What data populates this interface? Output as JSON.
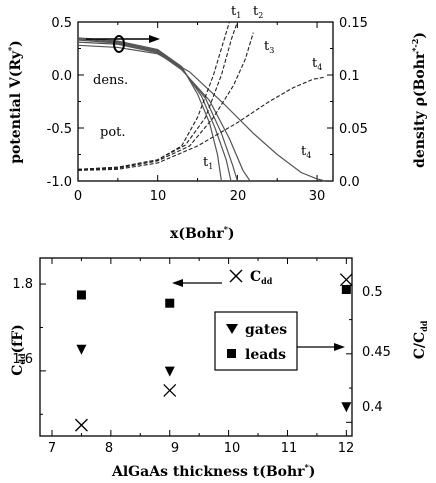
{
  "chart_data": [
    {
      "type": "line",
      "xlabel": "x(Bohr*)",
      "ylabel_left": "potential V(Ry*)",
      "ylabel_right": "density ρ(Bohr*-2)",
      "xlim": [
        0,
        32
      ],
      "ylim_left": [
        -1.0,
        0.5
      ],
      "ylim_right": [
        0,
        0.15
      ],
      "x_ticks": [
        "0",
        "10",
        "20",
        "30"
      ],
      "y_left_ticks": [
        "0.5",
        "0.0",
        "-0.5",
        "-1.0"
      ],
      "y_right_ticks": [
        "0.15",
        "0.1",
        "0.05",
        "0.0"
      ],
      "annotations": {
        "dens": "dens.",
        "pot": "pot.",
        "t1_top": "t1",
        "t2_top": "t2",
        "t3_top": "t3",
        "t4_top": "t4",
        "t1_bottom": "t1",
        "t4_bottom": "t4"
      },
      "series": [
        {
          "style": "solid",
          "axis": "left",
          "points": [
            [
              0,
              0.35
            ],
            [
              5,
              0.32
            ],
            [
              10,
              0.24
            ],
            [
              13,
              0.08
            ],
            [
              15,
              -0.18
            ],
            [
              16.5,
              -0.45
            ],
            [
              17.5,
              -0.75
            ],
            [
              18,
              -1.0
            ]
          ]
        },
        {
          "style": "solid",
          "axis": "left",
          "points": [
            [
              0,
              0.34
            ],
            [
              5,
              0.31
            ],
            [
              10,
              0.23
            ],
            [
              13,
              0.07
            ],
            [
              15.5,
              -0.2
            ],
            [
              17.2,
              -0.5
            ],
            [
              18.6,
              -0.8
            ],
            [
              19.2,
              -1.0
            ]
          ]
        },
        {
          "style": "solid",
          "axis": "left",
          "points": [
            [
              0,
              0.33
            ],
            [
              5,
              0.3
            ],
            [
              10,
              0.22
            ],
            [
              13,
              0.06
            ],
            [
              16,
              -0.22
            ],
            [
              18,
              -0.55
            ],
            [
              19.4,
              -0.85
            ],
            [
              20,
              -1.0
            ]
          ]
        },
        {
          "style": "solid",
          "axis": "left",
          "points": [
            [
              0,
              0.31
            ],
            [
              5,
              0.29
            ],
            [
              10,
              0.21
            ],
            [
              13,
              0.05
            ],
            [
              16.5,
              -0.24
            ],
            [
              19,
              -0.6
            ],
            [
              20.7,
              -0.9
            ],
            [
              21.6,
              -1.0
            ]
          ]
        },
        {
          "style": "solid",
          "axis": "left",
          "points": [
            [
              0,
              0.28
            ],
            [
              5,
              0.26
            ],
            [
              10,
              0.2
            ],
            [
              14,
              0.03
            ],
            [
              18,
              -0.25
            ],
            [
              22,
              -0.55
            ],
            [
              25,
              -0.75
            ],
            [
              28,
              -0.92
            ],
            [
              30,
              -0.98
            ],
            [
              31,
              -1.0
            ]
          ]
        },
        {
          "style": "dashed",
          "axis": "right",
          "points": [
            [
              0,
              0.011
            ],
            [
              5,
              0.013
            ],
            [
              10,
              0.02
            ],
            [
              13,
              0.033
            ],
            [
              15,
              0.06
            ],
            [
              17,
              0.1
            ],
            [
              18.2,
              0.13
            ],
            [
              19,
              0.15
            ]
          ]
        },
        {
          "style": "dashed",
          "axis": "right",
          "points": [
            [
              0,
              0.011
            ],
            [
              5,
              0.013
            ],
            [
              10,
              0.02
            ],
            [
              13.5,
              0.034
            ],
            [
              16,
              0.06
            ],
            [
              18,
              0.1
            ],
            [
              19.3,
              0.135
            ],
            [
              20,
              0.15
            ]
          ]
        },
        {
          "style": "dashed",
          "axis": "right",
          "points": [
            [
              0,
              0.0105
            ],
            [
              5,
              0.012
            ],
            [
              10,
              0.019
            ],
            [
              14,
              0.033
            ],
            [
              17,
              0.06
            ],
            [
              19.5,
              0.09
            ],
            [
              21,
              0.115
            ],
            [
              22,
              0.14
            ]
          ]
        },
        {
          "style": "dashed",
          "axis": "right",
          "points": [
            [
              0,
              0.01
            ],
            [
              5,
              0.011
            ],
            [
              10,
              0.017
            ],
            [
              15,
              0.033
            ],
            [
              20,
              0.055
            ],
            [
              24,
              0.075
            ],
            [
              27,
              0.088
            ],
            [
              29.5,
              0.096
            ],
            [
              31,
              0.098
            ]
          ]
        }
      ]
    },
    {
      "type": "scatter",
      "xlabel": "AlGaAs thickness t(Bohr*)",
      "ylabel_left": "Cdd(fF)",
      "ylabel_right": "C/Cdd",
      "xlim": [
        7,
        12.3
      ],
      "ylim_left": [
        1.45,
        1.86
      ],
      "ylim_right": [
        0.39,
        0.52
      ],
      "x_ticks": [
        "7",
        "8",
        "9",
        "10",
        "11",
        "12"
      ],
      "y_left_ticks": [
        "1.8",
        "1.6"
      ],
      "y_right_ticks": [
        "0.5",
        "0.45",
        "0.4"
      ],
      "legend": {
        "cdd": "Cdd",
        "gates": "gates",
        "leads": "leads"
      },
      "series": [
        {
          "name": "Cdd",
          "marker": "cross",
          "axis": "left",
          "x": [
            7.5,
            9,
            12
          ],
          "y": [
            1.475,
            1.555,
            1.81
          ]
        },
        {
          "name": "gates",
          "marker": "triangle-down",
          "axis": "right",
          "x": [
            7.5,
            9,
            12
          ],
          "y": [
            0.453,
            0.437,
            0.411
          ]
        },
        {
          "name": "leads",
          "marker": "square",
          "axis": "right",
          "x": [
            7.5,
            9,
            12
          ],
          "y": [
            0.493,
            0.487,
            0.497
          ]
        }
      ]
    }
  ]
}
